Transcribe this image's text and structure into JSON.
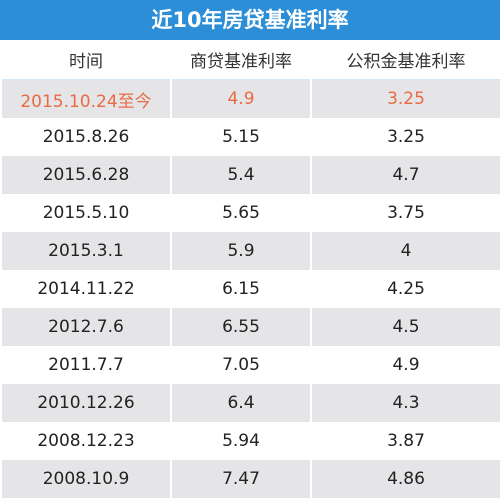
{
  "title": "近10年房贷基准利率",
  "table": {
    "header": [
      "时间",
      "商贷基准利率",
      "公积金基准利率"
    ],
    "rows": [
      [
        "2015.10.24至今",
        "4.9",
        "3.25"
      ],
      [
        "2015.8.26",
        "5.15",
        "3.25"
      ],
      [
        "2015.6.28",
        "5.4",
        "4.7"
      ],
      [
        "2015.5.10",
        "5.65",
        "3.75"
      ],
      [
        "2015.3.1",
        "5.9",
        "4"
      ],
      [
        "2014.11.22",
        "6.15",
        "4.25"
      ],
      [
        "2012.7.6",
        "6.55",
        "4.5"
      ],
      [
        "2011.7.7",
        "7.05",
        "4.9"
      ],
      [
        "2010.12.26",
        "6.4",
        "4.3"
      ],
      [
        "2008.12.23",
        "5.94",
        "3.87"
      ],
      [
        "2008.10.9",
        "7.47",
        "4.86"
      ]
    ]
  }
}
